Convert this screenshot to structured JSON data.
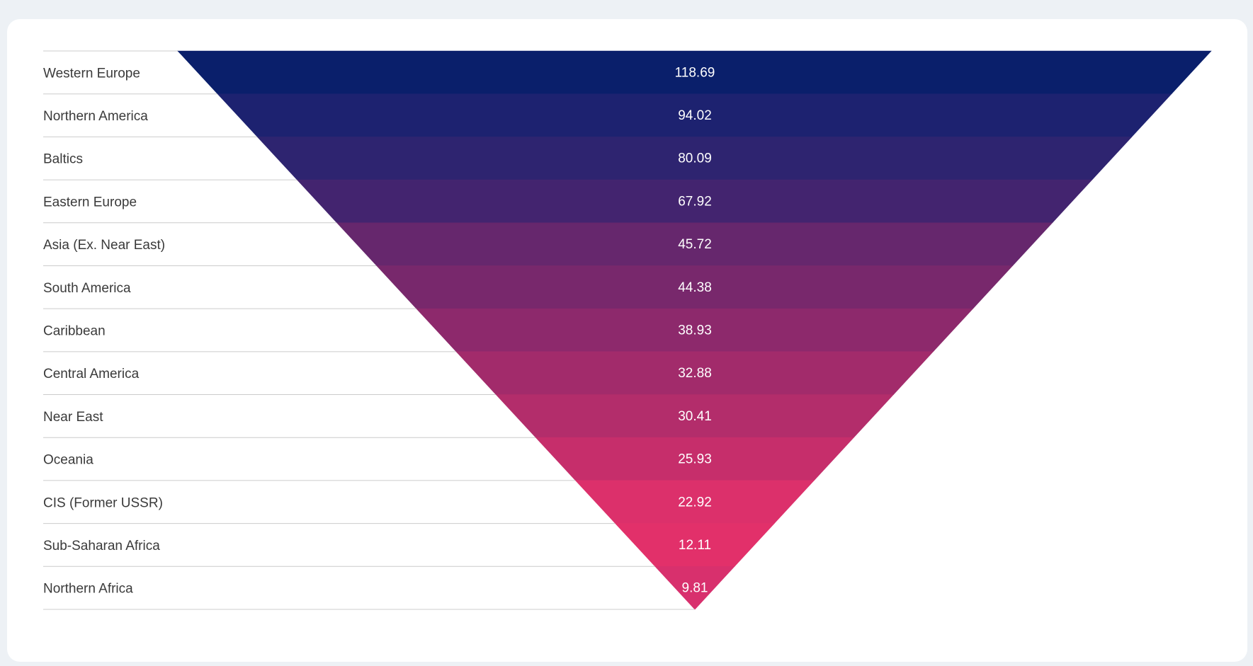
{
  "chart_data": {
    "type": "funnel",
    "categories": [
      "Western Europe",
      "Northern America",
      "Baltics",
      "Eastern Europe",
      "Asia (Ex. Near East)",
      "South America",
      "Caribbean",
      "Central America",
      "Near East",
      "Oceania",
      "CIS (Former USSR)",
      "Sub-Saharan Africa",
      "Northern Africa"
    ],
    "values": [
      118.69,
      94.02,
      80.09,
      67.92,
      45.72,
      44.38,
      38.93,
      32.88,
      30.41,
      25.93,
      22.92,
      12.11,
      9.81
    ],
    "value_labels": [
      "118.69",
      "94.02",
      "80.09",
      "67.92",
      "45.72",
      "44.38",
      "38.93",
      "32.88",
      "30.41",
      "25.93",
      "22.92",
      "12.11",
      "9.81"
    ],
    "colors": [
      "#0a1f6b",
      "#1d2270",
      "#2e2470",
      "#43246f",
      "#66276d",
      "#78286c",
      "#8d296c",
      "#a22b6b",
      "#b32d6b",
      "#c62e6b",
      "#dc306b",
      "#e2306a",
      "#d8306d"
    ],
    "title": "",
    "xlabel": "",
    "ylabel": "",
    "legend": "none",
    "grid": false
  }
}
